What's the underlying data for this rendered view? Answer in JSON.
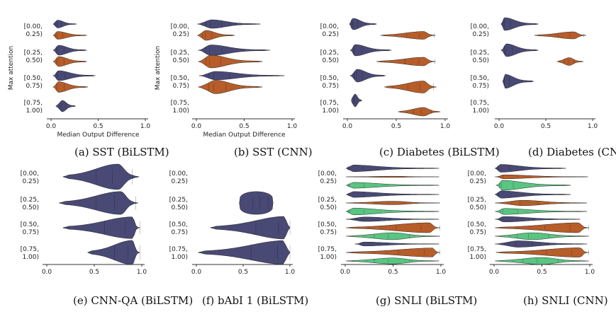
{
  "figure": {
    "colors": {
      "navy": "#3f3f6e",
      "orange": "#b3541e",
      "green": "#4fc27a",
      "axis": "#333333"
    }
  },
  "chart_data": [
    {
      "type": "violin",
      "id": "a",
      "caption": "(a) SST (BiLSTM)",
      "ylabel": "Max attention",
      "xlabel": "Median Output Difference",
      "xlim": [
        0,
        1
      ],
      "xticks": [
        "0.0",
        "0.5",
        "1.0"
      ],
      "groups": [
        {
          "label": [
            "[0.00,",
            "0.25)"
          ],
          "violins": [
            {
              "color": "navy",
              "min": 0.02,
              "max": 0.27,
              "peak": 0.07,
              "w": 0.55
            },
            {
              "color": "orange",
              "min": 0.02,
              "max": 0.38,
              "peak": 0.07,
              "w": 0.55
            }
          ]
        },
        {
          "label": [
            "[0.25,",
            "0.50)"
          ],
          "violins": [
            {
              "color": "navy",
              "min": 0.02,
              "max": 0.38,
              "peak": 0.08,
              "w": 0.7
            },
            {
              "color": "orange",
              "min": 0.02,
              "max": 0.38,
              "peak": 0.08,
              "w": 0.7
            }
          ]
        },
        {
          "label": [
            "[0.50,",
            "0.75)"
          ],
          "violins": [
            {
              "color": "navy",
              "min": 0.02,
              "max": 0.47,
              "peak": 0.08,
              "w": 0.7
            },
            {
              "color": "orange",
              "min": 0.02,
              "max": 0.39,
              "peak": 0.08,
              "w": 0.75
            }
          ]
        },
        {
          "label": [
            "[0.75,",
            "1.00)"
          ],
          "violins": [
            {
              "color": "navy",
              "min": 0.05,
              "max": 0.26,
              "peak": 0.12,
              "w": 0.8
            }
          ]
        }
      ]
    },
    {
      "type": "violin",
      "id": "b",
      "caption": "(b) SST (CNN)",
      "ylabel": "Max attention",
      "xlabel": "Median Output Difference",
      "xlim": [
        0,
        1
      ],
      "xticks": [
        "0.0",
        "0.5",
        "1.0"
      ],
      "groups": [
        {
          "label": [
            "[0.00,",
            "0.25)"
          ],
          "violins": [
            {
              "color": "navy",
              "min": 0.01,
              "max": 0.67,
              "peak": 0.16,
              "w": 0.6
            },
            {
              "color": "orange",
              "min": 0.01,
              "max": 0.4,
              "peak": 0.1,
              "w": 0.7
            }
          ]
        },
        {
          "label": [
            "[0.25,",
            "0.50)"
          ],
          "violins": [
            {
              "color": "navy",
              "min": 0.02,
              "max": 0.77,
              "peak": 0.15,
              "w": 0.75
            },
            {
              "color": "orange",
              "min": 0.02,
              "max": 0.69,
              "peak": 0.15,
              "w": 0.9
            }
          ]
        },
        {
          "label": [
            "[0.50,",
            "0.75)"
          ],
          "violins": [
            {
              "color": "navy",
              "min": 0.03,
              "max": 0.92,
              "peak": 0.2,
              "w": 0.6
            },
            {
              "color": "orange",
              "min": 0.02,
              "max": 0.69,
              "peak": 0.2,
              "w": 0.95
            }
          ]
        },
        {
          "label": [
            "[0.75,",
            "1.00)"
          ],
          "violins": []
        }
      ]
    },
    {
      "type": "violin",
      "id": "c",
      "caption": "(c) Diabetes (BiLSTM)",
      "ylabel": "",
      "xlabel": "",
      "xlim": [
        0,
        1
      ],
      "xticks": [
        "0.0",
        "0.5",
        "1.0"
      ],
      "groups": [
        {
          "label": [
            "[0.00,",
            "0.25)"
          ],
          "violins": [
            {
              "color": "navy",
              "min": 0.02,
              "max": 0.3,
              "peak": 0.06,
              "w": 0.8
            },
            {
              "color": "orange",
              "min": 0.34,
              "max": 0.9,
              "peak": 0.78,
              "w": 0.55
            }
          ]
        },
        {
          "label": [
            "[0.25,",
            "0.50)"
          ],
          "violins": [
            {
              "color": "navy",
              "min": 0.03,
              "max": 0.45,
              "peak": 0.08,
              "w": 0.8
            },
            {
              "color": "orange",
              "min": 0.3,
              "max": 0.9,
              "peak": 0.78,
              "w": 0.6
            }
          ]
        },
        {
          "label": [
            "[0.50,",
            "0.75)"
          ],
          "violins": [
            {
              "color": "navy",
              "min": 0.03,
              "max": 0.39,
              "peak": 0.1,
              "w": 0.9
            },
            {
              "color": "orange",
              "min": 0.38,
              "max": 0.91,
              "peak": 0.78,
              "w": 0.85
            }
          ]
        },
        {
          "label": [
            "[0.75,",
            "1.00)"
          ],
          "violins": [
            {
              "color": "navy",
              "min": 0.04,
              "max": 0.15,
              "peak": 0.08,
              "w": 0.9
            },
            {
              "color": "orange",
              "min": 0.52,
              "max": 0.95,
              "peak": 0.78,
              "w": 0.6
            }
          ]
        }
      ]
    },
    {
      "type": "violin",
      "id": "d",
      "caption": "(d) Diabetes (CNN)",
      "ylabel": "",
      "xlabel": "",
      "xlim": [
        0,
        1
      ],
      "xticks": [
        "0.0",
        "0.5",
        "1.0"
      ],
      "groups": [
        {
          "label": [
            "[0.00,",
            "0.25)"
          ],
          "violins": [
            {
              "color": "navy",
              "min": 0.02,
              "max": 0.42,
              "peak": 0.06,
              "w": 0.9
            },
            {
              "color": "orange",
              "min": 0.38,
              "max": 0.93,
              "peak": 0.8,
              "w": 0.5
            }
          ]
        },
        {
          "label": [
            "[0.25,",
            "0.50)"
          ],
          "violins": [
            {
              "color": "navy",
              "min": 0.02,
              "max": 0.42,
              "peak": 0.08,
              "w": 0.9
            },
            {
              "color": "orange",
              "min": 0.62,
              "max": 0.9,
              "peak": 0.75,
              "w": 0.55
            }
          ]
        },
        {
          "label": [
            "[0.50,",
            "0.75)"
          ],
          "violins": [
            {
              "color": "navy",
              "min": 0.04,
              "max": 0.37,
              "peak": 0.06,
              "w": 1.0
            }
          ]
        },
        {
          "label": [
            "[0.75,",
            "1.00)"
          ],
          "violins": []
        }
      ]
    },
    {
      "type": "violin",
      "id": "e",
      "caption": "(e) CNN-QA (BiLSTM)",
      "ylabel": "",
      "xlabel": "",
      "xlim": [
        0,
        1
      ],
      "xticks": [
        "0.0",
        "0.5",
        "1.0"
      ],
      "groups": [
        {
          "label": [
            "[0.00,",
            "0.25)"
          ],
          "violins": [
            {
              "color": "navy",
              "min": 0.17,
              "max": 0.97,
              "peak": 0.75,
              "w": 1.0
            }
          ]
        },
        {
          "label": [
            "[0.25,",
            "0.50)"
          ],
          "violins": [
            {
              "color": "navy",
              "min": 0.13,
              "max": 0.96,
              "peak": 0.78,
              "w": 0.9
            }
          ]
        },
        {
          "label": [
            "[0.50,",
            "0.75)"
          ],
          "violins": [
            {
              "color": "navy",
              "min": 0.17,
              "max": 0.98,
              "peak": 0.9,
              "w": 0.85
            }
          ]
        },
        {
          "label": [
            "[0.75,",
            "1.00)"
          ],
          "violins": [
            {
              "color": "navy",
              "min": 0.43,
              "max": 0.98,
              "peak": 0.9,
              "w": 0.95
            }
          ]
        }
      ]
    },
    {
      "type": "violin",
      "id": "f",
      "caption": "(f) bAbI 1 (BiLSTM)",
      "ylabel": "",
      "xlabel": "",
      "xlim": [
        0,
        1
      ],
      "xticks": [
        "0.0",
        "0.5",
        "1.0"
      ],
      "groups": [
        {
          "label": [
            "[0.00,",
            "0.25)"
          ],
          "violins": []
        },
        {
          "label": [
            "[0.25,",
            "0.50)"
          ],
          "violins": [
            {
              "color": "navy",
              "min": 0.46,
              "max": 0.82,
              "peak": 0.7,
              "w": 0.95,
              "boxy": true
            }
          ]
        },
        {
          "label": [
            "[0.50,",
            "0.75)"
          ],
          "violins": [
            {
              "color": "navy",
              "min": 0.15,
              "max": 1.0,
              "peak": 0.96,
              "w": 0.95
            }
          ]
        },
        {
          "label": [
            "[0.75,",
            "1.00)"
          ],
          "violins": [
            {
              "color": "navy",
              "min": 0.02,
              "max": 1.0,
              "peak": 0.96,
              "w": 1.0
            }
          ]
        }
      ]
    },
    {
      "type": "violin",
      "id": "g",
      "caption": "(g) SNLI (BiLSTM)",
      "ylabel": "",
      "xlabel": "",
      "xlim": [
        0,
        1
      ],
      "xticks": [
        "0.0",
        "0.5",
        "1.0"
      ],
      "groups": [
        {
          "label": [
            "[0.00,",
            "0.25)"
          ],
          "violins": [
            {
              "color": "navy",
              "min": 0.01,
              "max": 0.98,
              "peak": 0.04,
              "w": 0.7
            },
            {
              "color": "orange",
              "min": 0.01,
              "max": 0.98,
              "peak": 0.5,
              "w": 0.12
            },
            {
              "color": "green",
              "min": 0.01,
              "max": 0.98,
              "peak": 0.05,
              "w": 0.6
            }
          ]
        },
        {
          "label": [
            "[0.25,",
            "0.50)"
          ],
          "violins": [
            {
              "color": "navy",
              "min": 0.01,
              "max": 0.98,
              "peak": 0.05,
              "w": 0.6
            },
            {
              "color": "orange",
              "min": 0.01,
              "max": 0.99,
              "peak": 0.5,
              "w": 0.35
            },
            {
              "color": "green",
              "min": 0.01,
              "max": 0.98,
              "peak": 0.05,
              "w": 0.7
            }
          ]
        },
        {
          "label": [
            "[0.50,",
            "0.75)"
          ],
          "violins": [
            {
              "color": "navy",
              "min": 0.01,
              "max": 0.98,
              "peak": 0.2,
              "w": 0.45
            },
            {
              "color": "orange",
              "min": 0.01,
              "max": 0.99,
              "peak": 0.88,
              "w": 1.0
            },
            {
              "color": "green",
              "min": 0.01,
              "max": 0.99,
              "peak": 0.5,
              "w": 0.7
            }
          ]
        },
        {
          "label": [
            "[0.75,",
            "1.00)"
          ],
          "violins": [
            {
              "color": "navy",
              "min": 0.1,
              "max": 0.98,
              "peak": 0.2,
              "w": 0.4
            },
            {
              "color": "orange",
              "min": 0.01,
              "max": 0.99,
              "peak": 0.92,
              "w": 0.9
            },
            {
              "color": "green",
              "min": 0.01,
              "max": 0.98,
              "peak": 0.5,
              "w": 0.6
            }
          ]
        }
      ]
    },
    {
      "type": "violin",
      "id": "h",
      "caption": "(h) SNLI (CNN)",
      "ylabel": "",
      "xlabel": "",
      "xlim": [
        0,
        1
      ],
      "xticks": [
        "0.0",
        "0.5",
        "1.0"
      ],
      "groups": [
        {
          "label": [
            "[0.00,",
            "0.25)"
          ],
          "violins": [
            {
              "color": "navy",
              "min": 0.01,
              "max": 0.75,
              "peak": 0.05,
              "w": 0.8
            },
            {
              "color": "orange",
              "min": 0.01,
              "max": 0.98,
              "peak": 0.1,
              "w": 0.4
            },
            {
              "color": "green",
              "min": 0.02,
              "max": 0.8,
              "peak": 0.08,
              "w": 1.0
            }
          ]
        },
        {
          "label": [
            "[0.25,",
            "0.50)"
          ],
          "violins": [
            {
              "color": "navy",
              "min": 0.01,
              "max": 0.8,
              "peak": 0.05,
              "w": 0.75
            },
            {
              "color": "orange",
              "min": 0.01,
              "max": 0.97,
              "peak": 0.3,
              "w": 0.55
            },
            {
              "color": "green",
              "min": 0.01,
              "max": 0.97,
              "peak": 0.1,
              "w": 0.6
            }
          ]
        },
        {
          "label": [
            "[0.50,",
            "0.75)"
          ],
          "violins": [
            {
              "color": "navy",
              "min": 0.01,
              "max": 0.9,
              "peak": 0.1,
              "w": 0.55
            },
            {
              "color": "orange",
              "min": 0.01,
              "max": 0.99,
              "peak": 0.88,
              "w": 1.0
            },
            {
              "color": "green",
              "min": 0.01,
              "max": 0.99,
              "peak": 0.4,
              "w": 0.7
            }
          ]
        },
        {
          "label": [
            "[0.75,",
            "1.00)"
          ],
          "violins": [
            {
              "color": "navy",
              "min": 0.01,
              "max": 0.97,
              "peak": 0.25,
              "w": 0.65
            },
            {
              "color": "orange",
              "min": 0.02,
              "max": 0.99,
              "peak": 0.9,
              "w": 0.95
            },
            {
              "color": "green",
              "min": 0.01,
              "max": 0.99,
              "peak": 0.5,
              "w": 0.7
            }
          ]
        }
      ]
    }
  ]
}
